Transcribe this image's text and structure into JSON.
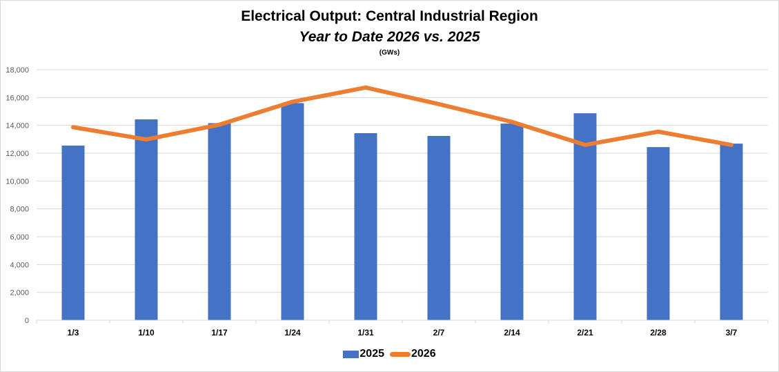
{
  "chart_data": {
    "type": "bar",
    "title": "Electrical Output:  Central Industrial Region",
    "subtitle": "Year to Date 2026 vs. 2025",
    "units_label": "(GWs)",
    "xlabel": "",
    "ylabel": "",
    "ylim": [
      0,
      18000
    ],
    "y_ticks": [
      0,
      2000,
      4000,
      6000,
      8000,
      10000,
      12000,
      14000,
      16000,
      18000
    ],
    "y_tick_labels": [
      "0",
      "2,000",
      "4,000",
      "6,000",
      "8,000",
      "10,000",
      "12,000",
      "14,000",
      "16,000",
      "18,000"
    ],
    "grid": true,
    "legend_position": "bottom",
    "categories": [
      "1/3",
      "1/10",
      "1/17",
      "1/24",
      "1/31",
      "2/7",
      "2/14",
      "2/21",
      "2/28",
      "3/7"
    ],
    "series": [
      {
        "name": "2025",
        "type": "bar",
        "color": "#4472C4",
        "values": [
          12550,
          14430,
          14160,
          15600,
          13440,
          13240,
          14130,
          14870,
          12440,
          12690
        ]
      },
      {
        "name": "2026",
        "type": "line",
        "color": "#ED7D31",
        "values": [
          13870,
          12990,
          14050,
          15700,
          16720,
          15530,
          14250,
          12600,
          13550,
          12590
        ]
      }
    ]
  }
}
